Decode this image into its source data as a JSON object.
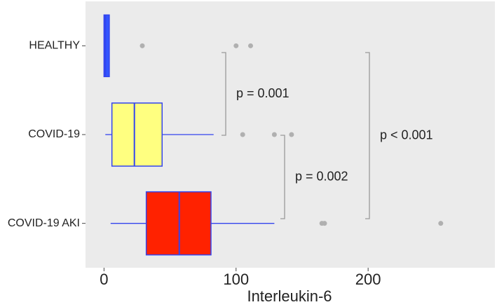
{
  "chart_data": {
    "type": "box",
    "orientation": "horizontal",
    "x_label": "Interleukin-6",
    "categories": [
      "HEALTHY",
      "COVID-19",
      "COVID-19 AKI"
    ],
    "boxes": [
      {
        "whislo": 0,
        "q1": 0,
        "med": 1,
        "q3": 4,
        "whishi": 4,
        "fliers": [
          29,
          100,
          111
        ],
        "color": "#3355ff"
      },
      {
        "whislo": 1,
        "q1": 6,
        "med": 23,
        "q3": 44,
        "whishi": 83,
        "fliers": [
          105,
          129,
          142
        ],
        "color": "#ffff80"
      },
      {
        "whislo": 5,
        "q1": 32,
        "med": 57,
        "q3": 81,
        "whishi": 129,
        "fliers": [
          165,
          167,
          255
        ],
        "color": "#ff2200"
      }
    ],
    "outline_color": "#3344ee",
    "flier_color": "#b0b0b0",
    "background": "#ebebeb",
    "xlim": [
      -14,
      296
    ],
    "xticks": [
      0,
      100,
      200
    ],
    "grid": false,
    "annotations": [
      "p = 0.001",
      "p = 0.002",
      "p < 0.001"
    ]
  }
}
